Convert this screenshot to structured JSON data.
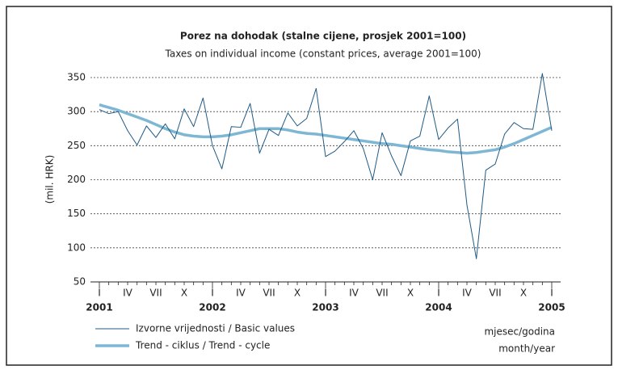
{
  "chart_data": {
    "type": "line",
    "title": "Porez na dohodak (stalne cijene, prosjek 2001=100)",
    "subtitle": "Taxes on individual income (constant prices, average 2001=100)",
    "y_label": "(mil. HRK)",
    "x_label": "mjesec/godina",
    "x_label_en": "month/year",
    "categories": [
      "I",
      null,
      null,
      "IV",
      null,
      null,
      "VII",
      null,
      null,
      "X",
      null,
      null,
      "I",
      null,
      null,
      "IV",
      null,
      null,
      "VII",
      null,
      null,
      "X",
      null,
      null,
      "I",
      null,
      null,
      "IV",
      null,
      null,
      "VII",
      null,
      null,
      "X",
      null,
      null,
      "I",
      null,
      null,
      "IV",
      null,
      null,
      "VII",
      null,
      null,
      "X",
      null,
      null,
      "I"
    ],
    "year_labels": [
      "2001",
      "2002",
      "2003",
      "2004",
      "2005"
    ],
    "series": [
      {
        "name": "Izvorne vrijednosti / Basic values",
        "color": "#1f5a85",
        "values": [
          303,
          297,
          300,
          272,
          251,
          279,
          262,
          282,
          260,
          304,
          278,
          320,
          250,
          216,
          278,
          277,
          312,
          239,
          274,
          265,
          298,
          279,
          290,
          334,
          234,
          242,
          256,
          272,
          246,
          200,
          269,
          235,
          206,
          257,
          264,
          323,
          259,
          276,
          289,
          163,
          84,
          214,
          223,
          267,
          284,
          275,
          274,
          356,
          272
        ]
      },
      {
        "name": "Trend - ciklus / Trend - cycle",
        "color": "#7db7d3",
        "values": [
          310,
          306,
          302,
          297,
          292,
          287,
          281,
          275,
          270,
          266,
          264,
          263,
          263,
          264,
          266,
          269,
          272,
          275,
          275,
          275,
          273,
          270,
          268,
          267,
          265,
          263,
          261,
          259,
          257,
          255,
          253,
          252,
          250,
          248,
          246,
          244,
          243,
          241,
          240,
          239,
          240,
          242,
          244,
          248,
          253,
          259,
          265,
          271,
          277
        ]
      }
    ],
    "ylim": [
      50,
      350
    ],
    "yticks": [
      50,
      100,
      150,
      200,
      250,
      300,
      350
    ],
    "grid": true
  }
}
